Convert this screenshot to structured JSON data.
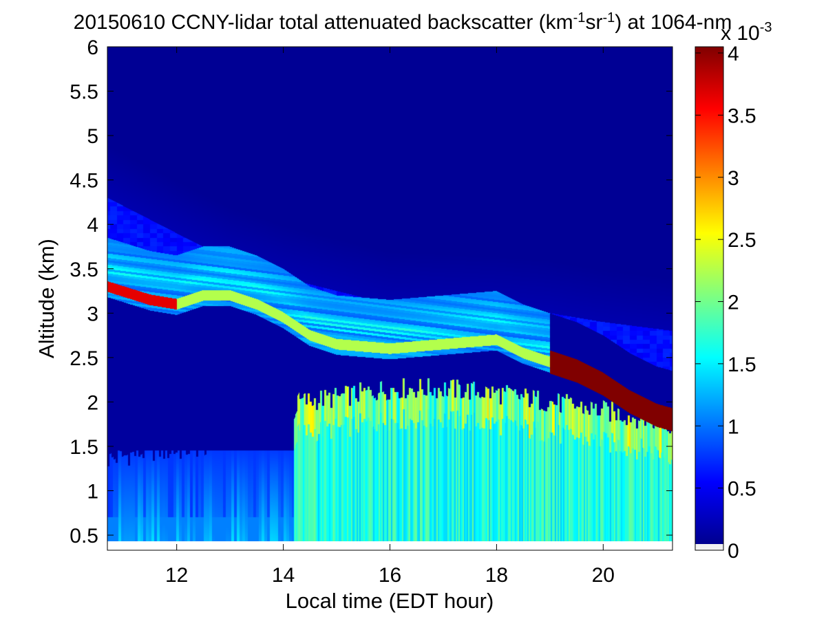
{
  "chart_data": {
    "type": "heatmap",
    "title": {
      "prefix": "20150610 CCNY-lidar total attenuated backscatter (km",
      "sup1": "-1",
      "middle": "sr",
      "sup2": "-1",
      "suffix": ") at 1064-nm"
    },
    "xlabel": "Local time (EDT hour)",
    "ylabel": "Altitude (km)",
    "xlim": [
      10.7,
      21.3
    ],
    "ylim": [
      0.33,
      6.0
    ],
    "data_ylim": [
      0.4,
      6.0
    ],
    "xticks": [
      12,
      14,
      16,
      18,
      20
    ],
    "xtick_labels": [
      "12",
      "14",
      "16",
      "18",
      "20"
    ],
    "yticks": [
      0.5,
      1,
      1.5,
      2,
      2.5,
      3,
      3.5,
      4,
      4.5,
      5,
      5.5,
      6
    ],
    "ytick_labels": [
      "0.5",
      "1",
      "1.5",
      "2",
      "2.5",
      "3",
      "3.5",
      "4",
      "4.5",
      "5",
      "5.5",
      "6"
    ],
    "colorbar": {
      "min": 0,
      "max": 4,
      "ticks": [
        0,
        0.5,
        1,
        1.5,
        2,
        2.5,
        3,
        3.5,
        4
      ],
      "tick_labels": [
        "0",
        "0.5",
        "1",
        "1.5",
        "2",
        "2.5",
        "3",
        "3.5",
        "4"
      ],
      "exponent_base": "x 10",
      "exponent": "-3",
      "colormap": "jet",
      "nodata_color": "#ffffff"
    },
    "features": {
      "boundary_layer_top": {
        "x": [
          10.7,
          11.5,
          12.0,
          12.5,
          13.0,
          13.5,
          14.0,
          14.3,
          15.0,
          16.0,
          17.0,
          18.0,
          19.0,
          20.0,
          21.3
        ],
        "y": [
          1.35,
          1.45,
          1.45,
          1.5,
          1.6,
          1.6,
          1.65,
          2.0,
          2.05,
          2.15,
          2.15,
          2.1,
          2.0,
          1.9,
          1.75
        ]
      },
      "elevated_aerosol_layer": {
        "x": [
          10.7,
          11.5,
          12.0,
          12.5,
          13.0,
          13.5,
          14.0,
          14.5,
          15.0,
          16.0,
          17.0,
          18.0,
          18.5,
          19.0,
          19.5,
          20.0,
          20.5,
          21.0,
          21.3
        ],
        "y": [
          3.3,
          3.15,
          3.1,
          3.2,
          3.2,
          3.1,
          2.95,
          2.75,
          2.65,
          2.6,
          2.65,
          2.7,
          2.55,
          2.45,
          2.35,
          2.2,
          2.0,
          1.85,
          1.8
        ]
      },
      "upper_layer_base": {
        "x": [
          10.7,
          12.0,
          13.0,
          14.0,
          16.0,
          18.0,
          19.0,
          20.0,
          21.3
        ],
        "y": [
          4.3,
          3.9,
          3.6,
          3.4,
          3.1,
          3.05,
          3.0,
          2.9,
          2.8
        ]
      }
    }
  }
}
